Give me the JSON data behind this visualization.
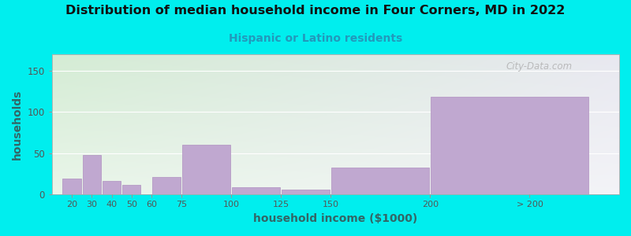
{
  "title": "Distribution of median household income in Four Corners, MD in 2022",
  "subtitle": "Hispanic or Latino residents",
  "xlabel": "household income ($1000)",
  "ylabel": "households",
  "background_outer": "#00EEEE",
  "background_inner_left": "#d4ecd4",
  "background_inner_right": "#e8e8ee",
  "bar_color": "#c0a8d0",
  "bar_edge_color": "#b090c0",
  "title_color": "#111111",
  "subtitle_color": "#2299bb",
  "axis_label_color": "#336666",
  "tick_label_color": "#555555",
  "watermark": "City-Data.com",
  "values": [
    19,
    48,
    16,
    12,
    0,
    21,
    60,
    9,
    6,
    33,
    118
  ],
  "bar_lefts": [
    15,
    25,
    35,
    45,
    55,
    60,
    75,
    100,
    125,
    150,
    200
  ],
  "bar_widths": [
    10,
    10,
    10,
    10,
    5,
    15,
    25,
    25,
    25,
    50,
    80
  ],
  "xlim": [
    10,
    295
  ],
  "ylim": [
    0,
    170
  ],
  "yticks": [
    0,
    50,
    100,
    150
  ],
  "xtick_positions": [
    20,
    30,
    40,
    50,
    60,
    75,
    100,
    125,
    150,
    200,
    250
  ],
  "xtick_labels": [
    "20",
    "30",
    "40",
    "50",
    "60",
    "75",
    "100",
    "125",
    "150",
    "200",
    "> 200"
  ],
  "figsize": [
    8.0,
    3.0
  ],
  "dpi": 100
}
